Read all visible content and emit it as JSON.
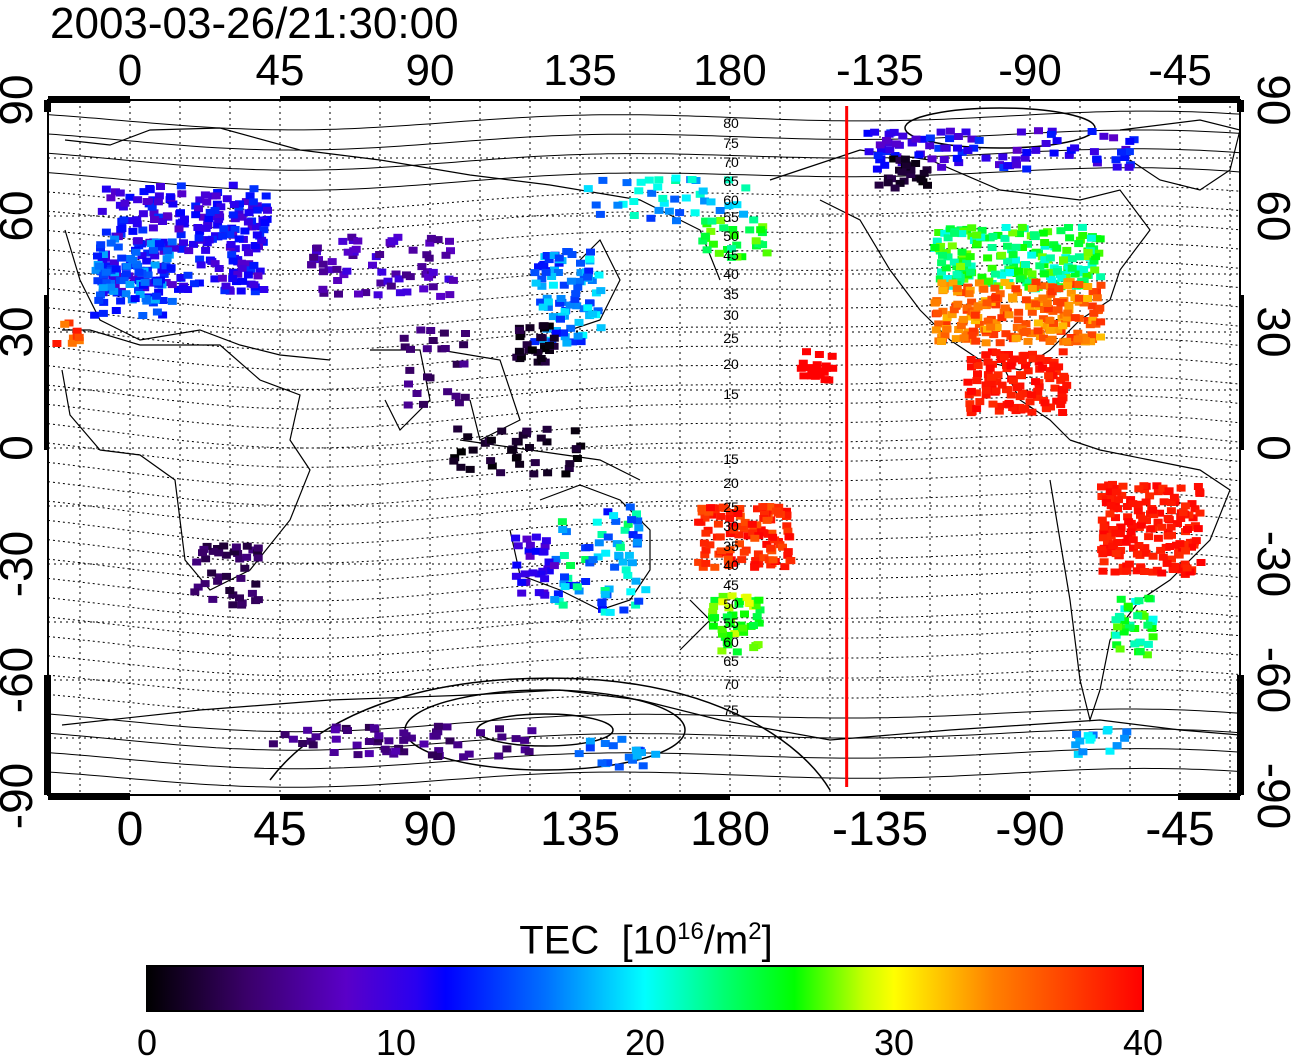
{
  "title": "2003-03-26/21:30:00",
  "colorbar": {
    "label_prefix": "TEC",
    "label_unit_open": "[10",
    "label_unit_exp1": "16",
    "label_unit_mid": "/m",
    "label_unit_exp2": "2",
    "label_unit_close": "]",
    "ticks": [
      "0",
      "10",
      "20",
      "30",
      "40"
    ],
    "range": [
      0,
      40
    ],
    "colors": [
      "#000000",
      "#3a0069",
      "#5a00c8",
      "#0000ff",
      "#0070ff",
      "#00ffff",
      "#00ff70",
      "#00ff00",
      "#c8ff00",
      "#ffff00",
      "#ff8000",
      "#ff0000"
    ]
  },
  "axes": {
    "lon_ticks": [
      "0",
      "45",
      "90",
      "135",
      "180",
      "-135",
      "-90",
      "-45"
    ],
    "lat_ticks": [
      "90",
      "60",
      "30",
      "0",
      "-30",
      "-60",
      "-90"
    ]
  },
  "contour_labels": {
    "north": [
      "80",
      "75",
      "70",
      "65",
      "60",
      "55",
      "50",
      "45",
      "40",
      "35",
      "30",
      "25",
      "20",
      "15"
    ],
    "south": [
      "15",
      "20",
      "25",
      "30",
      "35",
      "40",
      "45",
      "50",
      "55",
      "60",
      "65",
      "70",
      "75"
    ]
  },
  "terminator": {
    "color": "#ff0000",
    "lon": -145
  },
  "tec_regions": [
    {
      "name": "north-america-east",
      "lon": -80,
      "lat": 38,
      "tec": 38
    },
    {
      "name": "north-america-central",
      "lon": -100,
      "lat": 35,
      "tec": 36
    },
    {
      "name": "north-america-north",
      "lon": -100,
      "lat": 52,
      "tec": 22
    },
    {
      "name": "mexico-caribbean",
      "lon": -95,
      "lat": 18,
      "tec": 40
    },
    {
      "name": "south-america",
      "lon": -55,
      "lat": -20,
      "tec": 40
    },
    {
      "name": "europe",
      "lon": 20,
      "lat": 52,
      "tec": 10
    },
    {
      "name": "east-asia",
      "lon": 130,
      "lat": 38,
      "tec": 15
    },
    {
      "name": "australia",
      "lon": 135,
      "lat": -28,
      "tec": 16
    },
    {
      "name": "pacific-south",
      "lon": 185,
      "lat": -25,
      "tec": 40
    },
    {
      "name": "africa-south",
      "lon": 28,
      "lat": -30,
      "tec": 4
    },
    {
      "name": "antarctica",
      "lon": 80,
      "lat": -75,
      "tec": 5
    }
  ]
}
